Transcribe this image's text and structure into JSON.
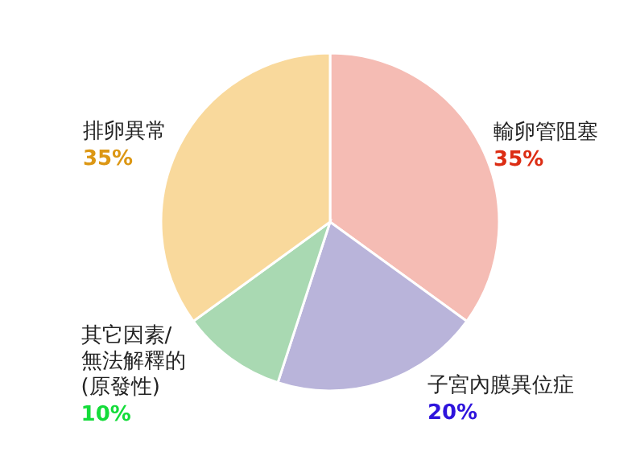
{
  "chart_data": {
    "type": "pie",
    "categories": [
      "輸卵管阻塞",
      "子宮內膜異位症",
      "其它因素/ 無法解釋的 (原發性)",
      "排卵異常"
    ],
    "values": [
      35,
      20,
      10,
      35
    ],
    "value_labels": [
      "35%",
      "20%",
      "10%",
      "35%"
    ],
    "colors": [
      "#f5bcb4",
      "#b9b4da",
      "#a9d9b2",
      "#f9d99c"
    ]
  }
}
